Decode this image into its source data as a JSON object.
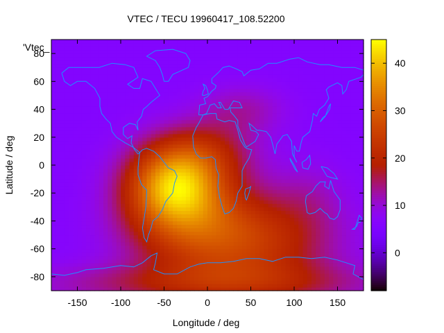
{
  "chart_data": {
    "type": "heatmap",
    "title": "VTEC / TECU 19960417_108.52200",
    "xlabel": "Longitude / deg",
    "ylabel": "Latitude / deg",
    "series_key": "'Vtec_",
    "xlim": [
      -180,
      180
    ],
    "ylim": [
      -90,
      90
    ],
    "xticks": [
      -150,
      -100,
      -50,
      0,
      50,
      100,
      150
    ],
    "yticks": [
      -80,
      -60,
      -40,
      -20,
      0,
      20,
      40,
      60,
      80
    ],
    "colorbar": {
      "range": [
        -8,
        45
      ],
      "ticks": [
        0,
        10,
        20,
        30,
        40
      ],
      "palette": "gnuplot-pm3d"
    },
    "field": {
      "background": 6,
      "hotspots": [
        {
          "lon": -38,
          "lat": -14,
          "lon_width": 55,
          "lat_width": 28,
          "amp": 29
        },
        {
          "lon": -20,
          "lat": -45,
          "lon_width": 80,
          "lat_width": 35,
          "amp": 14
        },
        {
          "lon": 60,
          "lat": -55,
          "lon_width": 90,
          "lat_width": 35,
          "amp": 14
        },
        {
          "lon": -5,
          "lat": 10,
          "lon_width": 60,
          "lat_width": 22,
          "amp": 10
        },
        {
          "lon": 40,
          "lat": 40,
          "lon_width": 50,
          "lat_width": 18,
          "amp": 6
        },
        {
          "lon": 0,
          "lat": -85,
          "lon_width": 200,
          "lat_width": 15,
          "amp": 10
        },
        {
          "lon": 120,
          "lat": -20,
          "lon_width": 40,
          "lat_width": 25,
          "amp": 3
        }
      ]
    },
    "coastline_color": "#1e90ff"
  }
}
